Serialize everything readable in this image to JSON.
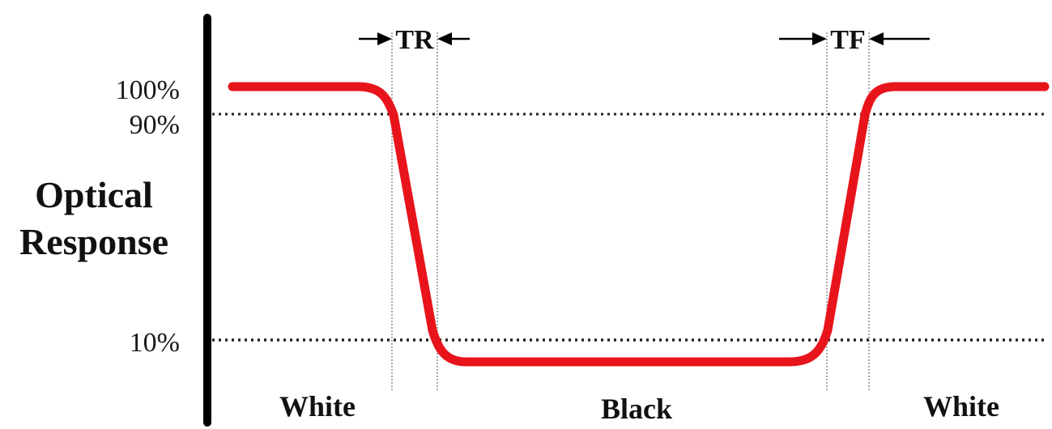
{
  "axis": {
    "title_line1": "Optical",
    "title_line2": "Response"
  },
  "levels": {
    "top": "100%",
    "upper_threshold": "90%",
    "lower_threshold": "10%"
  },
  "timing": {
    "rise": "TR",
    "fall": "TF"
  },
  "states": {
    "left": "White",
    "middle": "Black",
    "right": "White"
  },
  "colors": {
    "curve": "#e8141c",
    "axis": "#000000",
    "guides": "#222222"
  }
}
